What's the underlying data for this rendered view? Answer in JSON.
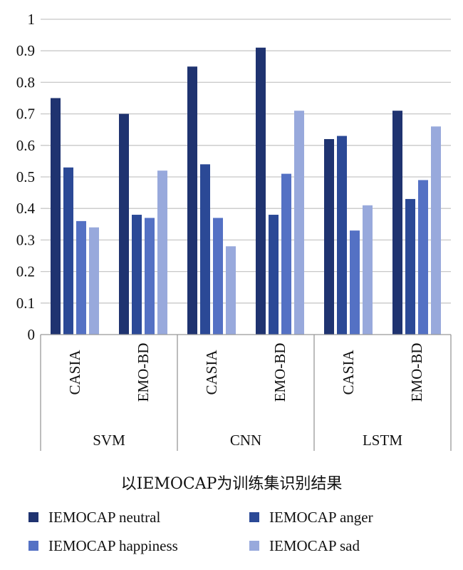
{
  "chart_data": {
    "type": "bar",
    "title": "",
    "xlabel": "以IEMOCAP为训练集识别结果",
    "ylabel": "",
    "ylim": [
      0,
      1
    ],
    "yticks": [
      "0",
      "0.1",
      "0.2",
      "0.3",
      "0.4",
      "0.5",
      "0.6",
      "0.7",
      "0.8",
      "0.9",
      "1"
    ],
    "grid": true,
    "legend_position": "bottom",
    "groups": [
      {
        "label": "SVM",
        "categories": [
          "CASIA",
          "EMO-BD"
        ]
      },
      {
        "label": "CNN",
        "categories": [
          "CASIA",
          "EMO-BD"
        ]
      },
      {
        "label": "LSTM",
        "categories": [
          "CASIA",
          "EMO-BD"
        ]
      }
    ],
    "categories": [
      "CASIA",
      "EMO-BD",
      "CASIA",
      "EMO-BD",
      "CASIA",
      "EMO-BD"
    ],
    "series": [
      {
        "name": "IEMOCAP neutral",
        "color": "#1f3370",
        "values": [
          0.75,
          0.7,
          0.85,
          0.91,
          0.62,
          0.71
        ]
      },
      {
        "name": "IEMOCAP anger",
        "color": "#2b4996",
        "values": [
          0.53,
          0.38,
          0.54,
          0.38,
          0.63,
          0.43
        ]
      },
      {
        "name": "IEMOCAP happiness",
        "color": "#5471c4",
        "values": [
          0.36,
          0.37,
          0.37,
          0.51,
          0.33,
          0.49
        ]
      },
      {
        "name": "IEMOCAP sad",
        "color": "#98a9dc",
        "values": [
          0.34,
          0.52,
          0.28,
          0.71,
          0.41,
          0.66
        ]
      }
    ]
  }
}
